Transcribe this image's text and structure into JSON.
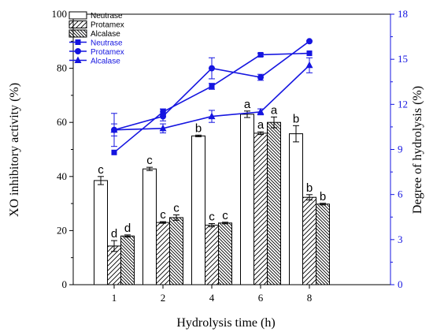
{
  "chart_data": {
    "type": "bar+line",
    "xlabel": "Hydrolysis time (h)",
    "ylabel": "XO inhibitory activity (%)",
    "y2label": "Degree of hydrolysis (%)",
    "categories": [
      "1",
      "2",
      "4",
      "6",
      "8"
    ],
    "ylim": [
      0,
      100
    ],
    "y_ticks": [
      0,
      20,
      40,
      60,
      80,
      100
    ],
    "y2lim": [
      0,
      18
    ],
    "y2_ticks": [
      0,
      3,
      6,
      9,
      12,
      15,
      18
    ],
    "bar_series": [
      {
        "name": "Neutrase",
        "pattern": "none",
        "values": [
          38.5,
          42.8,
          55.0,
          63.0,
          55.8
        ],
        "errors": [
          1.5,
          0.6,
          0.3,
          1.2,
          3.0
        ],
        "labels": [
          "c",
          "c",
          "b",
          "a",
          "b"
        ]
      },
      {
        "name": "Protamex",
        "pattern": "hatch-forward",
        "values": [
          14.3,
          23.0,
          22.0,
          56.0,
          32.3
        ],
        "errors": [
          2.0,
          0.3,
          0.6,
          0.5,
          1.0
        ],
        "labels": [
          "d",
          "c",
          "c",
          "a",
          "b"
        ]
      },
      {
        "name": "Alcalase",
        "pattern": "hatch-backward",
        "values": [
          18.0,
          24.8,
          22.8,
          60.0,
          29.8
        ],
        "errors": [
          0.4,
          1.0,
          0.3,
          2.0,
          0.3
        ],
        "labels": [
          "d",
          "c",
          "c",
          "a",
          "b"
        ]
      }
    ],
    "line_series": [
      {
        "name": "Neutrase",
        "marker": "square",
        "values": [
          8.8,
          11.5,
          13.2,
          15.3,
          15.4
        ],
        "errors": [
          0.0,
          0.2,
          0.2,
          0.1,
          0.0
        ]
      },
      {
        "name": "Protamex",
        "marker": "circle",
        "values": [
          10.3,
          11.2,
          14.4,
          13.8,
          16.2
        ],
        "errors": [
          1.1,
          0.3,
          0.7,
          0.2,
          0.0
        ]
      },
      {
        "name": "Alcalase",
        "marker": "triangle",
        "values": [
          10.3,
          10.4,
          11.2,
          11.5,
          14.6
        ],
        "errors": [
          0.4,
          0.3,
          0.4,
          0.2,
          0.5
        ]
      }
    ],
    "colors": {
      "bars": "#000000",
      "lines": "#1515e0",
      "right_axis": "#1515e0"
    },
    "legend_position": "top-left"
  }
}
